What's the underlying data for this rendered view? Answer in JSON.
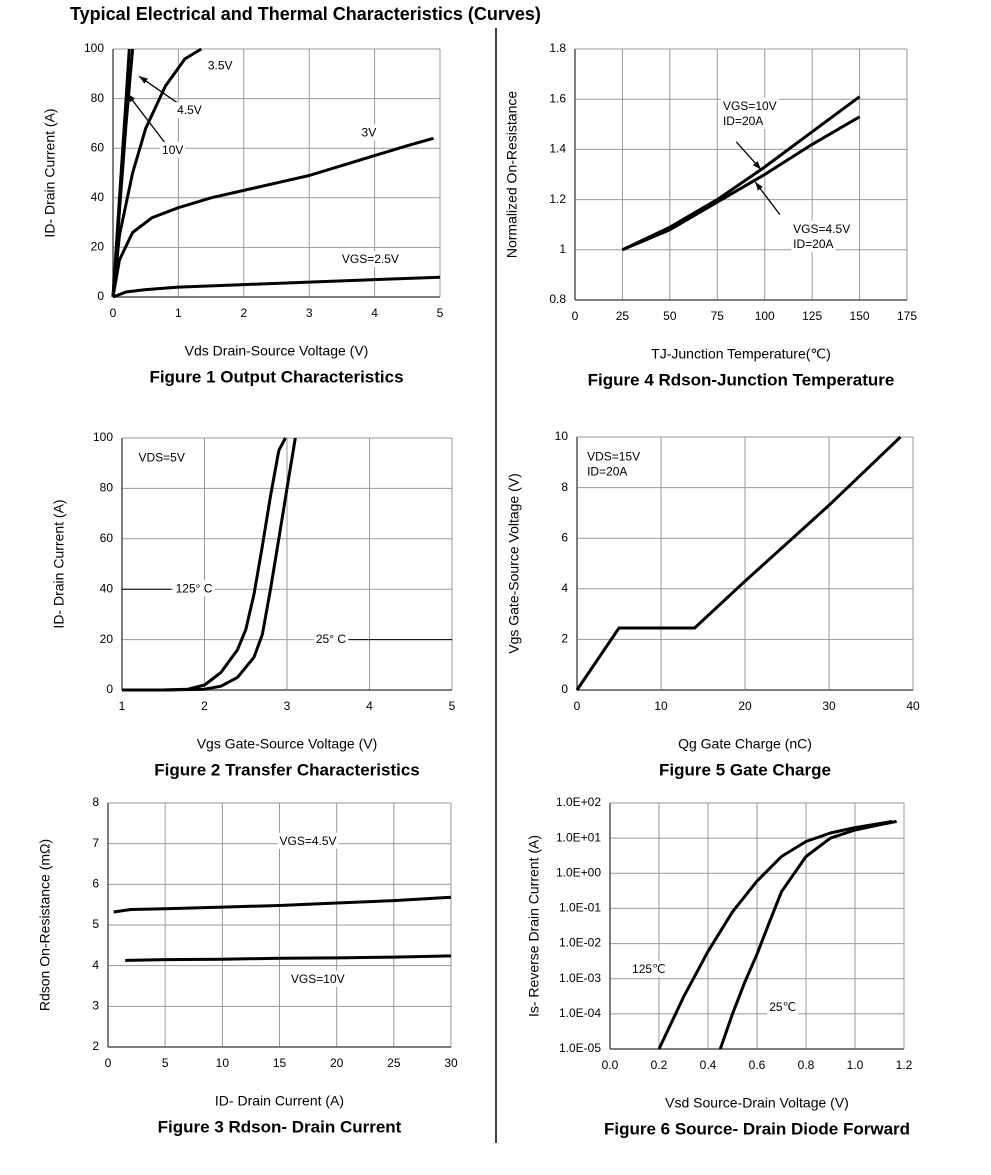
{
  "title": "Typical Electrical and Thermal Characteristics (Curves)",
  "chart_data": [
    {
      "type": "line",
      "title": "Figure 1 Output Characteristics",
      "x_label": "Vds Drain-Source Voltage (V)",
      "y_label": "ID- Drain Current (A)",
      "xlim": [
        0,
        5
      ],
      "ylim": [
        0,
        100
      ],
      "xticks": [
        0,
        1,
        2,
        3,
        4,
        5
      ],
      "yticks": [
        0,
        20,
        40,
        60,
        80,
        100
      ],
      "grid": true,
      "series": [
        {
          "name": "VGS=2.5V",
          "color": "#000000",
          "x": [
            0,
            0.2,
            0.5,
            1,
            2,
            3,
            4,
            5
          ],
          "values": [
            0,
            2,
            3,
            4,
            5,
            6,
            7,
            8
          ]
        },
        {
          "name": "3V",
          "color": "#000000",
          "x": [
            0,
            0.1,
            0.3,
            0.6,
            1,
            1.5,
            2,
            2.5,
            3,
            3.5,
            4,
            4.5,
            4.9
          ],
          "values": [
            0,
            15,
            26,
            32,
            36,
            40,
            43,
            46,
            49,
            53,
            57,
            61,
            64
          ]
        },
        {
          "name": "3.5V",
          "color": "#000000",
          "x": [
            0,
            0.1,
            0.3,
            0.5,
            0.8,
            1.1,
            1.35
          ],
          "values": [
            0,
            25,
            50,
            68,
            85,
            96,
            100
          ]
        },
        {
          "name": "4.5V",
          "color": "#000000",
          "x": [
            0,
            0.1,
            0.2,
            0.3
          ],
          "values": [
            0,
            35,
            70,
            100
          ]
        },
        {
          "name": "10V",
          "color": "#000000",
          "x": [
            0,
            0.1,
            0.2,
            0.25
          ],
          "values": [
            0,
            40,
            80,
            100
          ]
        }
      ]
    },
    {
      "type": "line",
      "title": "Figure 2 Transfer Characteristics",
      "x_label": "Vgs Gate-Source Voltage (V)",
      "y_label": "ID- Drain Current (A)",
      "xlim": [
        1,
        5
      ],
      "ylim": [
        0,
        100
      ],
      "xticks": [
        1,
        2,
        3,
        4,
        5
      ],
      "yticks": [
        0,
        20,
        40,
        60,
        80,
        100
      ],
      "grid": true,
      "annotations": [
        "VDS=5V"
      ],
      "series": [
        {
          "name": "125° C",
          "color": "#000000",
          "x": [
            1,
            1.5,
            1.8,
            2,
            2.2,
            2.4,
            2.5,
            2.6,
            2.7,
            2.8,
            2.9,
            2.98
          ],
          "values": [
            0,
            0,
            0.3,
            2,
            7,
            16,
            24,
            38,
            57,
            77,
            95,
            100
          ]
        },
        {
          "name": "25° C",
          "color": "#000000",
          "x": [
            1,
            1.5,
            2,
            2.2,
            2.4,
            2.6,
            2.7,
            2.8,
            2.9,
            3.0,
            3.1
          ],
          "values": [
            0,
            0,
            0.3,
            1.5,
            5,
            13,
            22,
            40,
            60,
            80,
            100
          ]
        }
      ]
    },
    {
      "type": "line",
      "title": "Figure 3 Rdson- Drain Current",
      "x_label": "ID- Drain Current (A)",
      "y_label": "Rdson On-Resistance (mΩ)",
      "xlim": [
        0,
        30
      ],
      "ylim": [
        2,
        8
      ],
      "xticks": [
        0,
        5,
        10,
        15,
        20,
        25,
        30
      ],
      "yticks": [
        2,
        3,
        4,
        5,
        6,
        7,
        8
      ],
      "grid": true,
      "series": [
        {
          "name": "VGS=4.5V",
          "color": "#000000",
          "x": [
            0.5,
            2,
            5,
            10,
            15,
            20,
            25,
            30
          ],
          "values": [
            5.32,
            5.38,
            5.4,
            5.44,
            5.48,
            5.54,
            5.6,
            5.68
          ]
        },
        {
          "name": "VGS=10V",
          "color": "#000000",
          "x": [
            1.5,
            5,
            10,
            15,
            20,
            25,
            30
          ],
          "values": [
            4.13,
            4.15,
            4.16,
            4.18,
            4.19,
            4.21,
            4.24
          ]
        }
      ]
    },
    {
      "type": "line",
      "title": "Figure 4 Rdson-Junction Temperature",
      "x_label": "TJ-Junction Temperature(℃)",
      "y_label": "Normalized On-Resistance",
      "xlim": [
        0,
        175
      ],
      "ylim": [
        0.8,
        1.8
      ],
      "xticks": [
        0,
        25,
        50,
        75,
        100,
        125,
        150,
        175
      ],
      "yticks": [
        0.8,
        1,
        1.2,
        1.4,
        1.6,
        1.8
      ],
      "grid": true,
      "annotations": [
        "ID=20A",
        "ID=20A"
      ],
      "series": [
        {
          "name": "VGS=10V",
          "color": "#000000",
          "x": [
            25,
            50,
            75,
            100,
            125,
            150
          ],
          "values": [
            1,
            1.09,
            1.2,
            1.33,
            1.47,
            1.61
          ]
        },
        {
          "name": "VGS=4.5V",
          "color": "#000000",
          "x": [
            25,
            50,
            75,
            100,
            125,
            150
          ],
          "values": [
            1,
            1.08,
            1.19,
            1.3,
            1.42,
            1.53
          ]
        }
      ]
    },
    {
      "type": "line",
      "title": "Figure 5 Gate Charge",
      "x_label": "Qg Gate Charge (nC)",
      "y_label": "Vgs Gate-Source Voltage (V)",
      "xlim": [
        0,
        40
      ],
      "ylim": [
        0,
        10
      ],
      "xticks": [
        0,
        10,
        20,
        30,
        40
      ],
      "yticks": [
        0,
        2,
        4,
        6,
        8,
        10
      ],
      "grid": true,
      "annotations": [
        "VDS=15V",
        "ID=20A"
      ],
      "series": [
        {
          "color": "#000000",
          "x": [
            0,
            5,
            14,
            20,
            30,
            38.5
          ],
          "values": [
            0,
            2.45,
            2.45,
            4.3,
            7.3,
            10
          ]
        }
      ]
    },
    {
      "type": "line",
      "title": "Figure 6 Source- Drain Diode Forward",
      "x_label": "Vsd Source-Drain Voltage (V)",
      "y_label": "Is- Reverse Drain Current (A)",
      "xlim": [
        0,
        1.2
      ],
      "ylim": [
        1e-05,
        100
      ],
      "yscale": "log",
      "xticks": [
        {
          "value": 0,
          "label": "0.0"
        },
        0.2,
        0.4,
        0.6,
        0.8,
        {
          "value": 1,
          "label": "1.0"
        },
        1.2
      ],
      "yticks": [
        {
          "value": 1e-05,
          "label": "1.0E-05"
        },
        {
          "value": 0.0001,
          "label": "1.0E-04"
        },
        {
          "value": 0.001,
          "label": "1.0E-03"
        },
        {
          "value": 0.01,
          "label": "1.0E-02"
        },
        {
          "value": 0.1,
          "label": "1.0E-01"
        },
        {
          "value": 1,
          "label": "1.0E+00"
        },
        {
          "value": 10,
          "label": "1.0E+01"
        },
        {
          "value": 100,
          "label": "1.0E+02"
        }
      ],
      "grid": true,
      "series": [
        {
          "name": "125℃",
          "color": "#000000",
          "x": [
            0.2,
            0.3,
            0.4,
            0.5,
            0.6,
            0.7,
            0.8,
            0.9,
            1.0,
            1.1,
            1.15
          ],
          "values": [
            1e-05,
            0.0003,
            0.006,
            0.08,
            0.6,
            3,
            8,
            14,
            20,
            26,
            30
          ]
        },
        {
          "name": "25℃",
          "color": "#000000",
          "x": [
            0.45,
            0.5,
            0.55,
            0.6,
            0.65,
            0.7,
            0.8,
            0.9,
            1.0,
            1.1,
            1.17
          ],
          "values": [
            1e-05,
            0.0001,
            0.0008,
            0.005,
            0.04,
            0.3,
            3,
            10,
            17,
            24,
            30
          ]
        }
      ]
    }
  ]
}
